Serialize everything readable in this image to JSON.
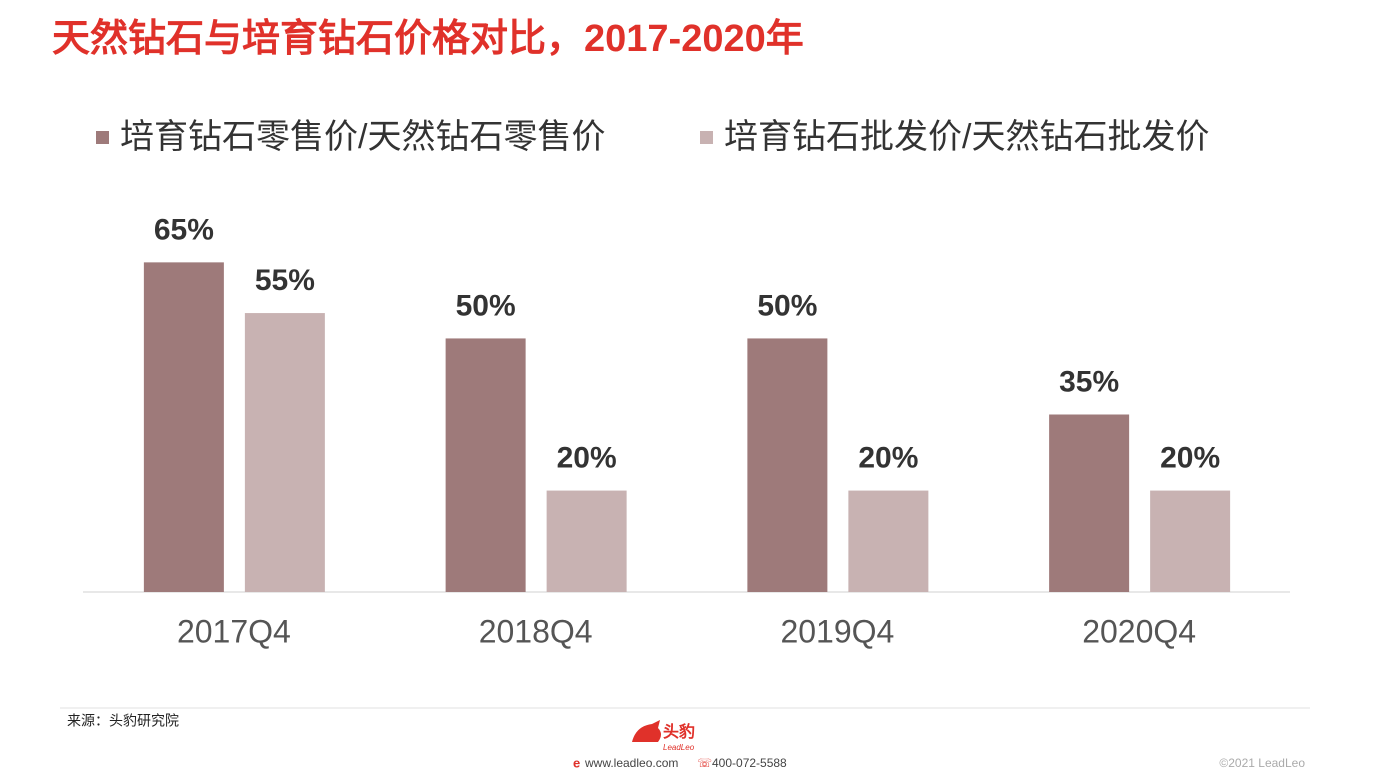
{
  "chart_data": {
    "type": "bar",
    "title": "天然钻石与培育钻石价格对比，2017-2020年",
    "categories": [
      "2017Q4",
      "2018Q4",
      "2019Q4",
      "2020Q4"
    ],
    "series": [
      {
        "name": "培育钻石零售价/天然钻石零售价",
        "color": "#9e7a7a",
        "values": [
          65,
          50,
          50,
          35
        ],
        "value_labels": [
          "65%",
          "50%",
          "50%",
          "35%"
        ]
      },
      {
        "name": "培育钻石批发价/天然钻石批发价",
        "color": "#c8b2b2",
        "values": [
          55,
          20,
          20,
          20
        ],
        "value_labels": [
          "55%",
          "20%",
          "20%",
          "20%"
        ]
      }
    ],
    "ylim": [
      0,
      70
    ],
    "grid": false
  },
  "footer": {
    "source": "来源：头豹研究院",
    "logo": "头豹",
    "logo_sub": "LeadLeo",
    "website": "www.leadleo.com",
    "phone": "400-072-5588",
    "copyright": "©2021 LeadLeo"
  }
}
